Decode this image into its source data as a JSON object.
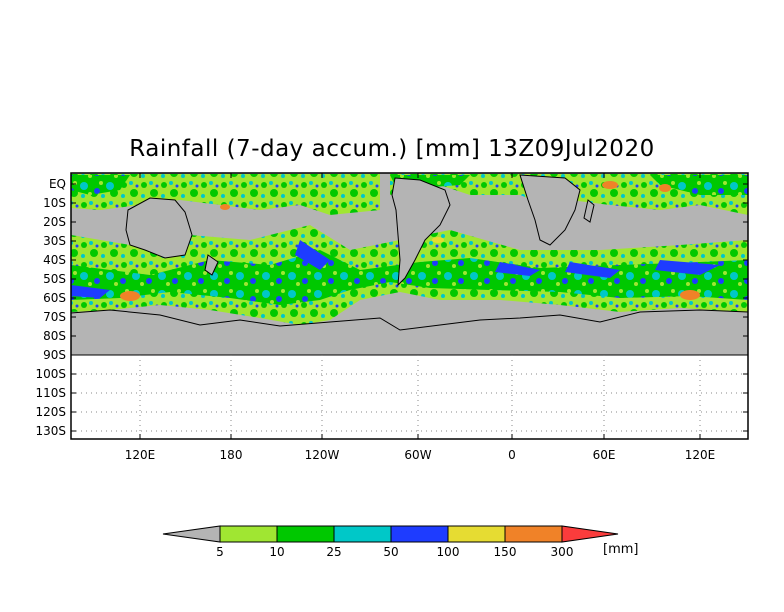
{
  "title": "Rainfall (7-day accum.) [mm] 13Z09Jul2020",
  "map": {
    "lat_labels": [
      "EQ",
      "10S",
      "20S",
      "30S",
      "40S",
      "50S",
      "60S",
      "70S",
      "80S",
      "90S",
      "100S",
      "110S",
      "120S",
      "130S"
    ],
    "lon_labels": [
      "120E",
      "180",
      "120W",
      "60W",
      "0",
      "60E",
      "120E"
    ],
    "land_color": "#b4b4b4",
    "masked_color": "#b4b4b4",
    "grid": "dotted"
  },
  "colorbar": {
    "unit_label": "[mm]",
    "thresholds": [
      "5",
      "10",
      "25",
      "50",
      "100",
      "150",
      "300"
    ],
    "colors": [
      "#b4b4b4",
      "#a0e632",
      "#00c800",
      "#00c8c8",
      "#1e3cff",
      "#e6dc32",
      "#f08228",
      "#fa3c3c"
    ]
  }
}
